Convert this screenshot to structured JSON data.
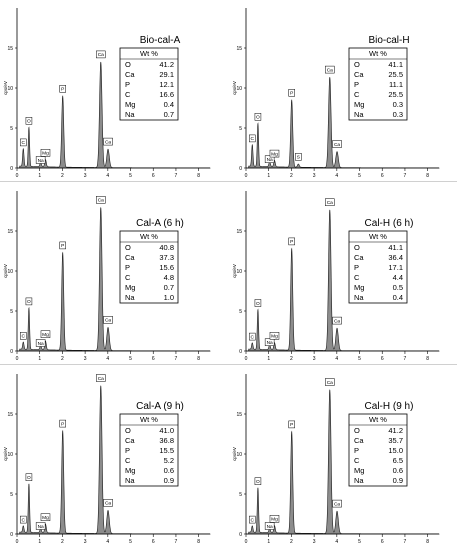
{
  "style": {
    "fill_color": "#8c8c8c",
    "line_color": "#1a1a1a",
    "axis_color": "#000000"
  },
  "chart_data": [
    {
      "type": "area",
      "title": "Bio-cal-A",
      "ylabel": "cps/eV",
      "xlim": [
        0,
        8.5
      ],
      "ylim": [
        0,
        20
      ],
      "x_ticks": [
        0,
        1,
        2,
        3,
        4,
        5,
        6,
        7,
        8
      ],
      "y_ticks": [
        0,
        5,
        10,
        15
      ],
      "grid": false,
      "table": {
        "header": "Wt %",
        "rows": [
          [
            "O",
            "41.2"
          ],
          [
            "Ca",
            "29.1"
          ],
          [
            "P",
            "12.1"
          ],
          [
            "C",
            "16.6"
          ],
          [
            "Mg",
            "0.4"
          ],
          [
            "Na",
            "0.7"
          ]
        ]
      },
      "peaks": [
        {
          "label": "C",
          "x": 0.277,
          "y": 2.2,
          "width": 0.03
        },
        {
          "label": "O",
          "x": 0.525,
          "y": 4.9,
          "width": 0.03
        },
        {
          "label": "Na",
          "x": 1.041,
          "y": 0.5,
          "width": 0.035
        },
        {
          "label": "Mg",
          "x": 1.254,
          "y": 0.9,
          "width": 0.035
        },
        {
          "label": "P",
          "x": 2.013,
          "y": 8.9,
          "width": 0.045
        },
        {
          "label": "Ca",
          "x": 3.69,
          "y": 13.2,
          "width": 0.055
        },
        {
          "label": "Ca",
          "x": 4.01,
          "y": 2.3,
          "width": 0.055
        }
      ]
    },
    {
      "type": "area",
      "title": "Bio-cal-H",
      "ylabel": "cps/eV",
      "xlim": [
        0,
        8.5
      ],
      "ylim": [
        0,
        20
      ],
      "x_ticks": [
        0,
        1,
        2,
        3,
        4,
        5,
        6,
        7,
        8
      ],
      "y_ticks": [
        0,
        5,
        10,
        15
      ],
      "grid": false,
      "table": {
        "header": "Wt %",
        "rows": [
          [
            "O",
            "41.1"
          ],
          [
            "Ca",
            "25.5"
          ],
          [
            "P",
            "11.1"
          ],
          [
            "C",
            "25.5"
          ],
          [
            "Mg",
            "0.3"
          ],
          [
            "Na",
            "0.3"
          ]
        ]
      },
      "peaks": [
        {
          "label": "C",
          "x": 0.277,
          "y": 2.7,
          "width": 0.03
        },
        {
          "label": "O",
          "x": 0.525,
          "y": 5.4,
          "width": 0.03
        },
        {
          "label": "Na",
          "x": 1.041,
          "y": 0.6,
          "width": 0.035
        },
        {
          "label": "Mg",
          "x": 1.254,
          "y": 0.8,
          "width": 0.035
        },
        {
          "label": "P",
          "x": 2.013,
          "y": 8.4,
          "width": 0.045
        },
        {
          "label": "S",
          "x": 2.307,
          "y": 0.4,
          "width": 0.04
        },
        {
          "label": "Ca",
          "x": 3.69,
          "y": 11.3,
          "width": 0.055
        },
        {
          "label": "Ca",
          "x": 4.01,
          "y": 2.0,
          "width": 0.055
        }
      ]
    },
    {
      "type": "area",
      "title": "Cal-A (6 h)",
      "ylabel": "cps/eV",
      "xlim": [
        0,
        8.5
      ],
      "ylim": [
        0,
        20
      ],
      "x_ticks": [
        0,
        1,
        2,
        3,
        4,
        5,
        6,
        7,
        8
      ],
      "y_ticks": [
        0,
        5,
        10,
        15
      ],
      "grid": false,
      "table": {
        "header": "Wt %",
        "rows": [
          [
            "O",
            "40.8"
          ],
          [
            "Ca",
            "37.3"
          ],
          [
            "P",
            "15.6"
          ],
          [
            "C",
            "4.8"
          ],
          [
            "Mg",
            "0.7"
          ],
          [
            "Na",
            "1.0"
          ]
        ]
      },
      "peaks": [
        {
          "label": "C",
          "x": 0.277,
          "y": 0.9,
          "width": 0.03
        },
        {
          "label": "O",
          "x": 0.525,
          "y": 5.2,
          "width": 0.03
        },
        {
          "label": "Na",
          "x": 1.041,
          "y": 0.5,
          "width": 0.035
        },
        {
          "label": "Mg",
          "x": 1.254,
          "y": 1.1,
          "width": 0.035
        },
        {
          "label": "P",
          "x": 2.013,
          "y": 12.2,
          "width": 0.045
        },
        {
          "label": "Ca",
          "x": 3.69,
          "y": 17.9,
          "width": 0.055
        },
        {
          "label": "Ca",
          "x": 4.01,
          "y": 2.9,
          "width": 0.055
        }
      ]
    },
    {
      "type": "area",
      "title": "Cal-H (6 h)",
      "ylabel": "cps/eV",
      "xlim": [
        0,
        8.5
      ],
      "ylim": [
        0,
        20
      ],
      "x_ticks": [
        0,
        1,
        2,
        3,
        4,
        5,
        6,
        7,
        8
      ],
      "y_ticks": [
        0,
        5,
        10,
        15
      ],
      "grid": false,
      "table": {
        "header": "Wt %",
        "rows": [
          [
            "O",
            "41.1"
          ],
          [
            "Ca",
            "36.4"
          ],
          [
            "P",
            "17.1"
          ],
          [
            "C",
            "4.4"
          ],
          [
            "Mg",
            "0.5"
          ],
          [
            "Na",
            "0.4"
          ]
        ]
      },
      "peaks": [
        {
          "label": "C",
          "x": 0.277,
          "y": 0.8,
          "width": 0.03
        },
        {
          "label": "O",
          "x": 0.525,
          "y": 5.0,
          "width": 0.03
        },
        {
          "label": "Na",
          "x": 1.041,
          "y": 0.6,
          "width": 0.035
        },
        {
          "label": "Mg",
          "x": 1.254,
          "y": 0.9,
          "width": 0.035
        },
        {
          "label": "P",
          "x": 2.013,
          "y": 12.7,
          "width": 0.045
        },
        {
          "label": "Ca",
          "x": 3.69,
          "y": 17.6,
          "width": 0.055
        },
        {
          "label": "Ca",
          "x": 4.01,
          "y": 2.8,
          "width": 0.055
        }
      ]
    },
    {
      "type": "area",
      "title": "Cal-A (9 h)",
      "ylabel": "cps/eV",
      "xlim": [
        0,
        8.5
      ],
      "ylim": [
        0,
        20
      ],
      "x_ticks": [
        0,
        1,
        2,
        3,
        4,
        5,
        6,
        7,
        8
      ],
      "y_ticks": [
        0,
        5,
        10,
        15
      ],
      "grid": false,
      "table": {
        "header": "Wt %",
        "rows": [
          [
            "O",
            "41.0"
          ],
          [
            "Ca",
            "36.8"
          ],
          [
            "P",
            "15.5"
          ],
          [
            "C",
            "5.2"
          ],
          [
            "Mg",
            "0.6"
          ],
          [
            "Na",
            "0.9"
          ]
        ]
      },
      "peaks": [
        {
          "label": "C",
          "x": 0.277,
          "y": 0.8,
          "width": 0.03
        },
        {
          "label": "O",
          "x": 0.525,
          "y": 6.1,
          "width": 0.03
        },
        {
          "label": "Na",
          "x": 1.041,
          "y": 0.5,
          "width": 0.035
        },
        {
          "label": "Mg",
          "x": 1.254,
          "y": 1.1,
          "width": 0.035
        },
        {
          "label": "P",
          "x": 2.013,
          "y": 12.8,
          "width": 0.045
        },
        {
          "label": "Ca",
          "x": 3.69,
          "y": 18.5,
          "width": 0.055
        },
        {
          "label": "Ca",
          "x": 4.01,
          "y": 2.9,
          "width": 0.055
        }
      ]
    },
    {
      "type": "area",
      "title": "Cal-H (9 h)",
      "ylabel": "cps/eV",
      "xlim": [
        0,
        8.5
      ],
      "ylim": [
        0,
        20
      ],
      "x_ticks": [
        0,
        1,
        2,
        3,
        4,
        5,
        6,
        7,
        8
      ],
      "y_ticks": [
        0,
        5,
        10,
        15
      ],
      "grid": false,
      "table": {
        "header": "Wt %",
        "rows": [
          [
            "O",
            "41.2"
          ],
          [
            "Ca",
            "35.7"
          ],
          [
            "P",
            "15.0"
          ],
          [
            "C",
            "6.5"
          ],
          [
            "Mg",
            "0.6"
          ],
          [
            "Na",
            "0.9"
          ]
        ]
      },
      "peaks": [
        {
          "label": "C",
          "x": 0.277,
          "y": 0.8,
          "width": 0.03
        },
        {
          "label": "O",
          "x": 0.525,
          "y": 5.6,
          "width": 0.03
        },
        {
          "label": "Na",
          "x": 1.041,
          "y": 0.5,
          "width": 0.035
        },
        {
          "label": "Mg",
          "x": 1.254,
          "y": 0.9,
          "width": 0.035
        },
        {
          "label": "P",
          "x": 2.013,
          "y": 12.7,
          "width": 0.045
        },
        {
          "label": "Ca",
          "x": 3.69,
          "y": 18.0,
          "width": 0.055
        },
        {
          "label": "Ca",
          "x": 4.01,
          "y": 2.8,
          "width": 0.055
        }
      ]
    }
  ]
}
